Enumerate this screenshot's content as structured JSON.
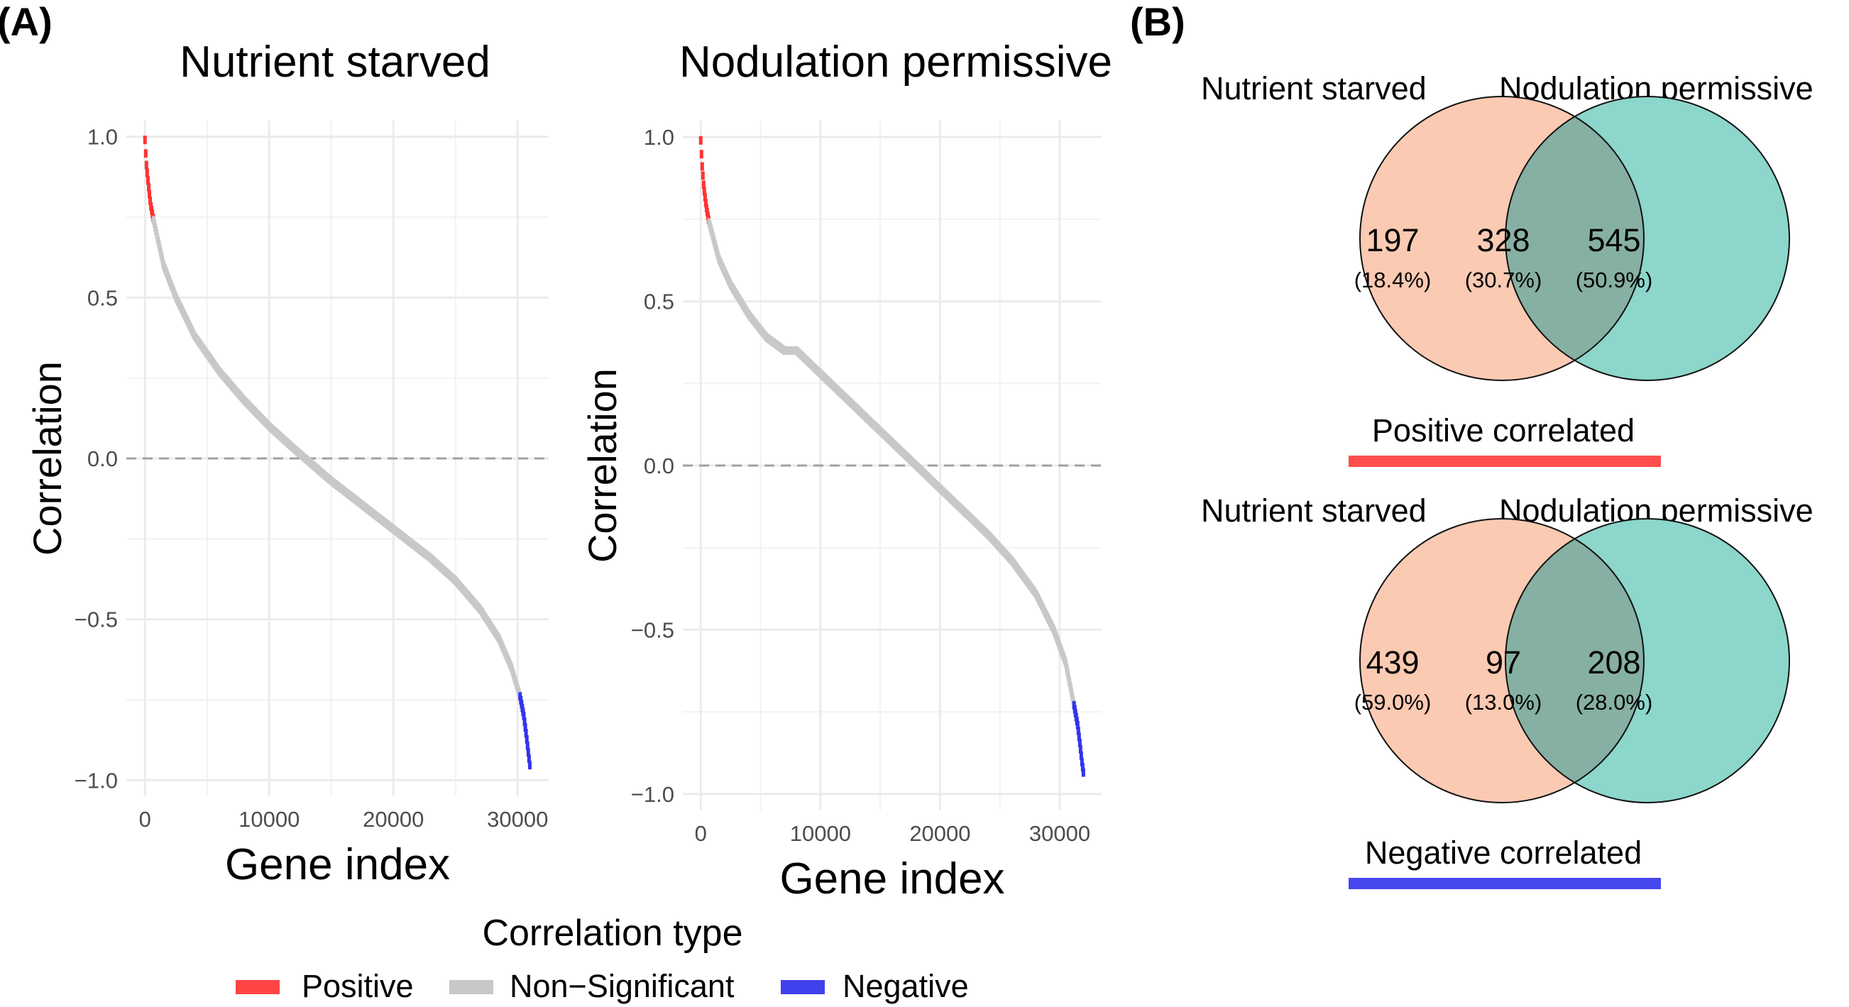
{
  "panels": {
    "a_label": "(A)",
    "b_label": "(B)"
  },
  "chart_data": [
    {
      "type": "line",
      "title": "Nutrient starved",
      "xlabel": "Gene index",
      "ylabel": "Correlation",
      "xlim": [
        -1500,
        32500
      ],
      "ylim": [
        -1.05,
        1.05
      ],
      "x_ticks": [
        0,
        10000,
        20000,
        30000
      ],
      "x_tick_labels": [
        "0",
        "10000",
        "20000",
        "30000"
      ],
      "y_ticks": [
        1.0,
        0.5,
        0.0,
        -0.5,
        -1.0
      ],
      "y_tick_labels": [
        "1.0",
        "0.5",
        "0.0",
        "−0.5",
        "−1.0"
      ],
      "reference_line": 0,
      "series": [
        {
          "name": "Positive",
          "x": [
            0,
            100,
            250,
            450,
            700
          ],
          "y": [
            0.99,
            0.92,
            0.86,
            0.79,
            0.74
          ]
        },
        {
          "name": "Non−Significant",
          "x": [
            700,
            1500,
            2500,
            4000,
            6000,
            8000,
            10000,
            12000,
            13500,
            15000,
            17000,
            19000,
            21000,
            23000,
            25000,
            27000,
            28500,
            29500,
            30200
          ],
          "y": [
            0.74,
            0.6,
            0.5,
            0.38,
            0.27,
            0.18,
            0.1,
            0.03,
            -0.02,
            -0.07,
            -0.13,
            -0.19,
            -0.25,
            -0.31,
            -0.38,
            -0.47,
            -0.56,
            -0.65,
            -0.74
          ]
        },
        {
          "name": "Negative",
          "x": [
            30200,
            30500,
            30700,
            30850,
            31000
          ],
          "y": [
            -0.74,
            -0.8,
            -0.86,
            -0.91,
            -0.96
          ]
        }
      ]
    },
    {
      "type": "line",
      "title": "Nodulation permissive",
      "xlabel": "Gene index",
      "ylabel": "Correlation",
      "xlim": [
        -1500,
        33500
      ],
      "ylim": [
        -1.05,
        1.05
      ],
      "x_ticks": [
        0,
        10000,
        20000,
        30000
      ],
      "x_tick_labels": [
        "0",
        "10000",
        "20000",
        "30000"
      ],
      "y_ticks": [
        1.0,
        0.5,
        0.0,
        -0.5,
        -1.0
      ],
      "y_tick_labels": [
        "1.0",
        "0.5",
        "0.0",
        "−0.5",
        "−1.0"
      ],
      "reference_line": 0,
      "series": [
        {
          "name": "Positive",
          "x": [
            0,
            100,
            250,
            450,
            700
          ],
          "y": [
            0.99,
            0.92,
            0.85,
            0.79,
            0.74
          ]
        },
        {
          "name": "Non−Significant",
          "x": [
            700,
            1500,
            2500,
            4000,
            5500,
            7000,
            8000,
            10000,
            12000,
            14000,
            16000,
            18000,
            20000,
            22000,
            24000,
            26000,
            28000,
            29500,
            30500,
            31200
          ],
          "y": [
            0.74,
            0.63,
            0.55,
            0.46,
            0.39,
            0.35,
            0.35,
            0.28,
            0.21,
            0.14,
            0.07,
            0.0,
            -0.07,
            -0.14,
            -0.21,
            -0.29,
            -0.39,
            -0.5,
            -0.6,
            -0.73
          ]
        },
        {
          "name": "Negative",
          "x": [
            31200,
            31500,
            31700,
            31850,
            32000
          ],
          "y": [
            -0.73,
            -0.79,
            -0.85,
            -0.9,
            -0.94
          ]
        }
      ]
    },
    {
      "type": "venn",
      "sets": [
        "Nutrient starved",
        "Nodulation permissive"
      ],
      "values": [
        {
          "count": "197",
          "percent": "(18.4%)"
        },
        {
          "count": "328",
          "percent": "(30.7%)"
        },
        {
          "count": "545",
          "percent": "(50.9%)"
        }
      ],
      "caption": "Positive correlated",
      "caption_color": "#ff4d4d"
    },
    {
      "type": "venn",
      "sets": [
        "Nutrient starved",
        "Nodulation permissive"
      ],
      "values": [
        {
          "count": "439",
          "percent": "(59.0%)"
        },
        {
          "count": "97",
          "percent": "(13.0%)"
        },
        {
          "count": "208",
          "percent": "(28.0%)"
        }
      ],
      "caption": "Negative correlated",
      "caption_color": "#4646ee"
    }
  ],
  "legend": {
    "title": "Correlation type",
    "items": [
      {
        "label": "Positive",
        "color": "#ff4444"
      },
      {
        "label": "Non−Significant",
        "color": "#c8c8c8"
      },
      {
        "label": "Negative",
        "color": "#4040ee"
      }
    ]
  },
  "colors": {
    "positive": "#ff3333",
    "non_significant": "#c8c8c8",
    "negative": "#3333ee",
    "venn_left": "#fbcab2",
    "venn_right": "#8cd6cb",
    "venn_overlap": "#86b0a3",
    "grid": "#ebebeb",
    "zero_line": "#a0a0a0",
    "tick_text": "#4d4d4d"
  }
}
